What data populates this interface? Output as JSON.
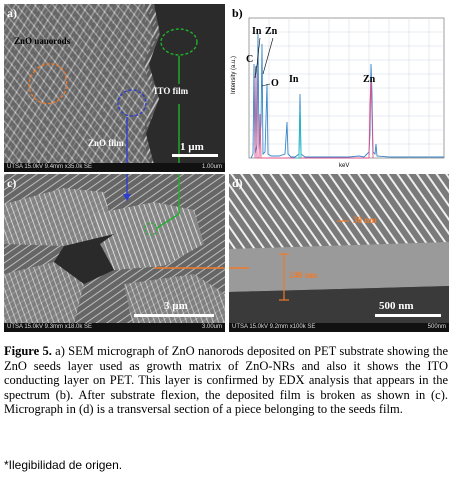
{
  "panel_a": {
    "label": "a)",
    "annotations": {
      "zno_nanorods": "ZnO nanorods",
      "zno_film": "ZnO film",
      "ito_film": "ITO film"
    },
    "scale_bar": "1 µm",
    "footer_left": "UTSA 15.0kV 9.4mm x35.0k SE",
    "footer_right": "1.00um"
  },
  "panel_b": {
    "label": "b)",
    "ylabel": "Intensity (a.u.)",
    "xlabel": "keV",
    "peak_labels": {
      "in1": "In",
      "zn1": "Zn",
      "c": "C",
      "o": "O",
      "in2": "In",
      "zn2": "Zn"
    }
  },
  "panel_c": {
    "label": "c)",
    "scale_bar": "3 µm",
    "footer_left": "UTSA 15.0kV 9.3mm x18.0k SE",
    "footer_right": "3.00um"
  },
  "panel_d": {
    "label": "d)",
    "measure_top": "30 nm",
    "measure_mid": "240 nm",
    "scale_bar": "500 nm",
    "footer_left": "UTSA 15.0kV 9.2mm x100k SE",
    "footer_right": "500nm"
  },
  "caption": {
    "figure_label": "Figure 5.",
    "text": " a) SEM micrograph of ZnO nanorods deposited on PET substrate showing the ZnO seeds layer used as growth matrix of ZnO-NRs and also it shows the ITO conducting layer on PET. This layer is confirmed by EDX analysis that appears in the spectrum (b). After substrate flexion, the deposited film is broken as shown in (c). Micrograph in (d) is a transversal section of a piece belonging to the seeds film."
  },
  "note": "*Ilegibilidad de origen.",
  "colors": {
    "blue": "#2d3fd0",
    "green": "#1fb02a",
    "orange": "#f07a2a"
  }
}
